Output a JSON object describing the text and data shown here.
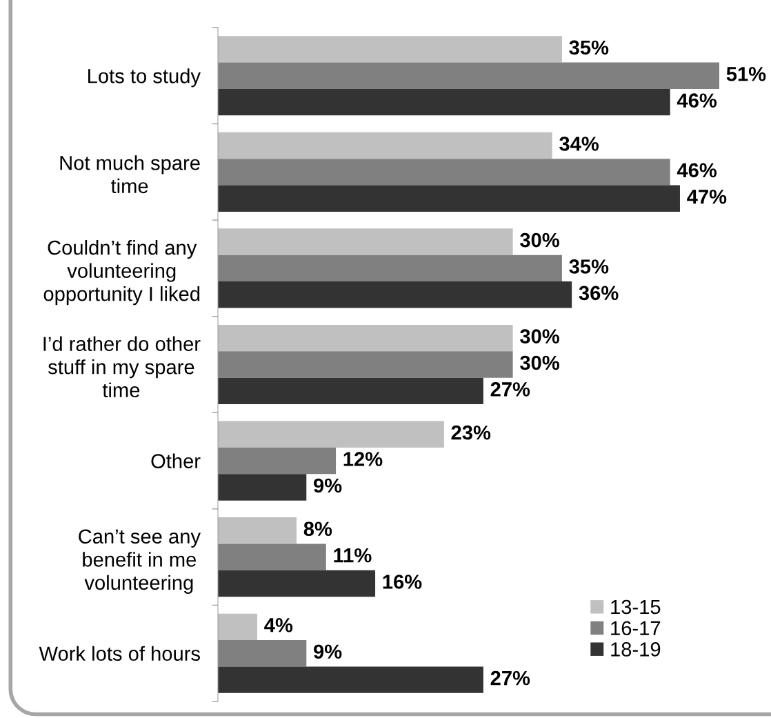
{
  "chart_data": {
    "type": "bar",
    "orientation": "horizontal",
    "categories": [
      "Lots to study",
      "Not much spare\ntime",
      "Couldn’t find any\nvolunteering\nopportunity I liked",
      "I’d rather do other\nstuff in my spare\ntime",
      "Other",
      "Can’t see any\nbenefit in me\nvolunteering",
      "Work lots of hours"
    ],
    "series": [
      {
        "name": "13-15",
        "color": "#c0c0c0",
        "values": [
          35,
          34,
          30,
          30,
          23,
          8,
          4
        ],
        "value_labels": [
          "35%",
          "34%",
          "30%",
          "30%",
          "23%",
          "8%",
          "4%"
        ]
      },
      {
        "name": "16-17",
        "color": "#808080",
        "values": [
          51,
          46,
          35,
          30,
          12,
          11,
          9
        ],
        "value_labels": [
          "51%",
          "46%",
          "35%",
          "30%",
          "12%",
          "11%",
          "9%"
        ]
      },
      {
        "name": "18-19",
        "color": "#333333",
        "values": [
          46,
          47,
          36,
          27,
          9,
          16,
          27
        ],
        "value_labels": [
          "46%",
          "47%",
          "36%",
          "27%",
          "9%",
          "16%",
          "27%"
        ]
      }
    ],
    "legend": "bottom right",
    "tick_labels": "y",
    "grid": false
  }
}
